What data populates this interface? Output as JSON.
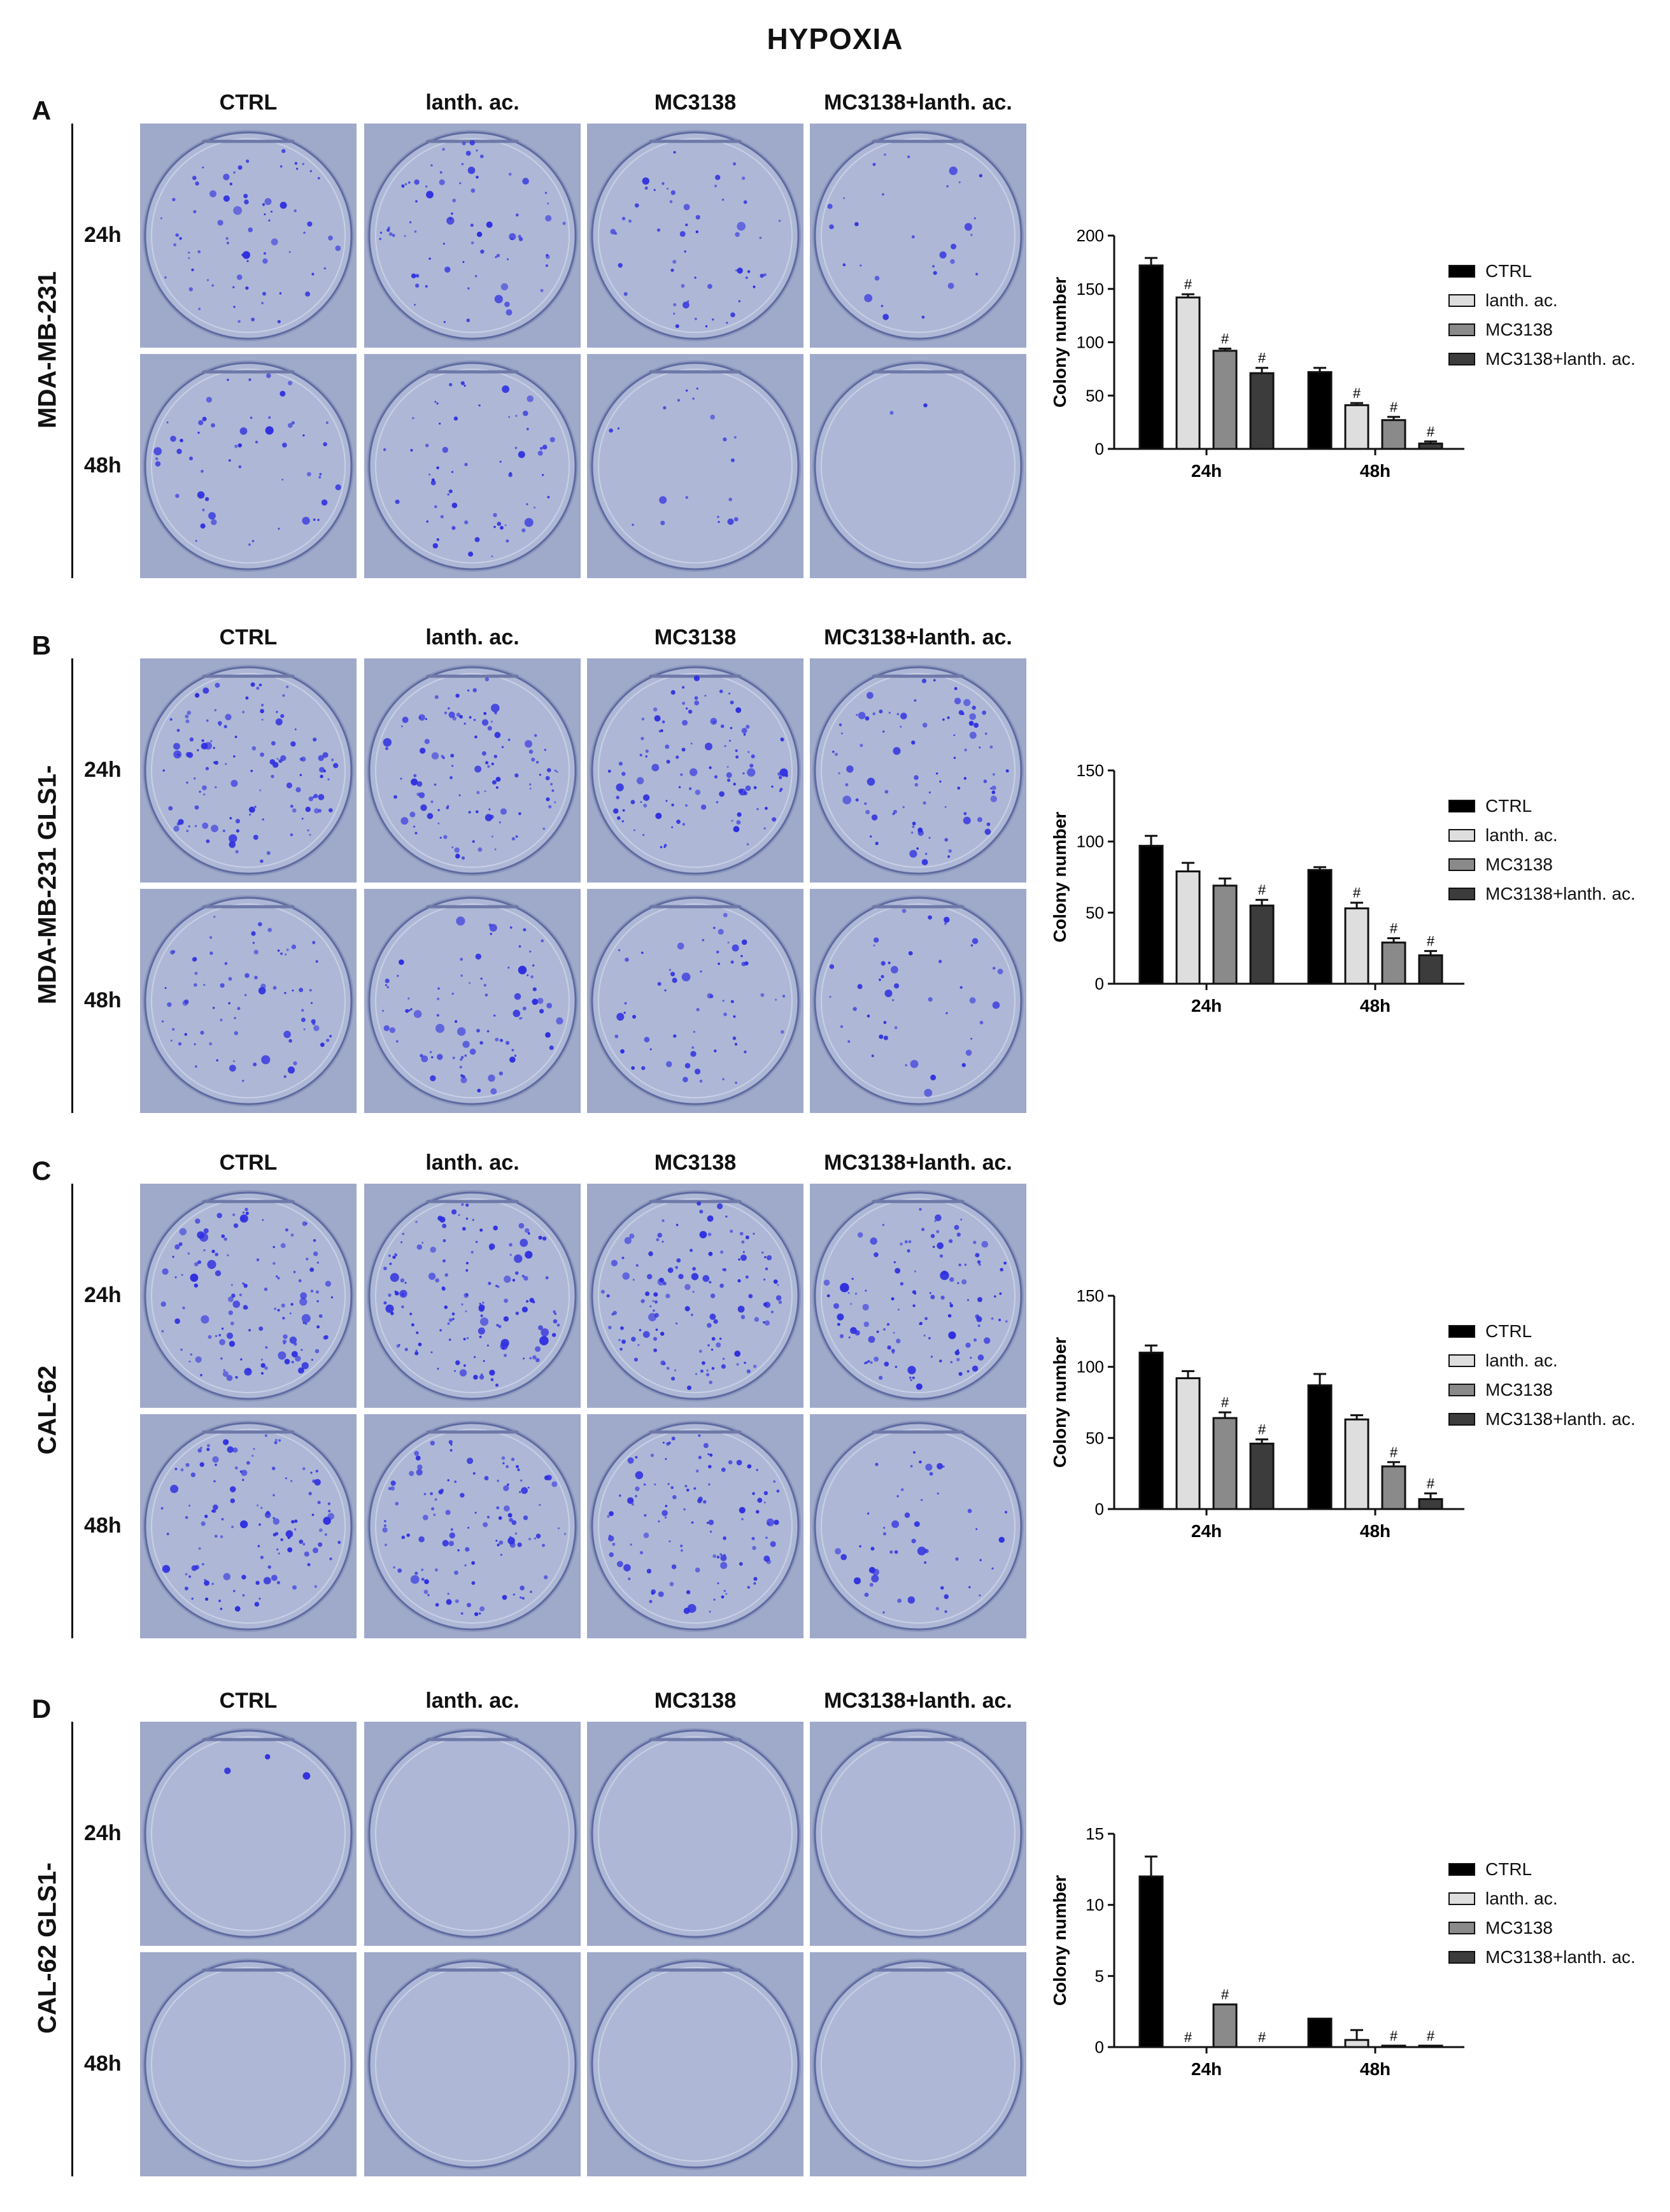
{
  "figure": {
    "title": "HYPOXIA",
    "treatment_headers": [
      "CTRL",
      "lanth. ac.",
      "MC3138",
      "MC3138+lanth. ac."
    ],
    "time_labels": [
      "24h",
      "48h"
    ],
    "panels": [
      {
        "letter": "A",
        "cell_line": "MDA-MB-231",
        "colonies": [
          [
            70,
            75,
            55,
            30
          ],
          [
            55,
            60,
            20,
            2
          ]
        ]
      },
      {
        "letter": "B",
        "cell_line": "MDA-MB-231 GLS1-",
        "colonies": [
          [
            120,
            110,
            110,
            90
          ],
          [
            75,
            85,
            60,
            45
          ]
        ]
      },
      {
        "letter": "C",
        "cell_line": "CAL-62",
        "colonies": [
          [
            130,
            140,
            130,
            120
          ],
          [
            120,
            115,
            110,
            50
          ]
        ]
      },
      {
        "letter": "D",
        "cell_line": "CAL-62 GLS1-",
        "colonies": [
          [
            3,
            0,
            0,
            0
          ],
          [
            0,
            0,
            0,
            0
          ]
        ]
      }
    ]
  },
  "colors": {
    "CTRL": "#000000",
    "lanth. ac.": "#dedede",
    "MC3138": "#8a8a8a",
    "MC3138+lanth. ac.": "#3c3c3c",
    "colony": "#2f2fe0",
    "plate": "#aeb8d6"
  },
  "chart_data": [
    {
      "type": "bar",
      "panel": "A",
      "categories": [
        "24h",
        "48h"
      ],
      "ylabel": "Colony number",
      "ylim": [
        0,
        200
      ],
      "yticks": [
        0,
        50,
        100,
        150,
        200
      ],
      "legend_position": "right",
      "series": [
        {
          "name": "CTRL",
          "values": [
            172,
            72
          ],
          "errors": [
            7,
            4
          ],
          "marks": [
            "",
            ""
          ]
        },
        {
          "name": "lanth. ac.",
          "values": [
            142,
            41
          ],
          "errors": [
            3,
            2
          ],
          "marks": [
            "#",
            "#"
          ]
        },
        {
          "name": "MC3138",
          "values": [
            92,
            27
          ],
          "errors": [
            2,
            3
          ],
          "marks": [
            "#",
            "#"
          ]
        },
        {
          "name": "MC3138+lanth. ac.",
          "values": [
            71,
            5
          ],
          "errors": [
            5,
            2
          ],
          "marks": [
            "#",
            "#"
          ]
        }
      ]
    },
    {
      "type": "bar",
      "panel": "B",
      "categories": [
        "24h",
        "48h"
      ],
      "ylabel": "Colony number",
      "ylim": [
        0,
        150
      ],
      "yticks": [
        0,
        50,
        100,
        150
      ],
      "legend_position": "right",
      "series": [
        {
          "name": "CTRL",
          "values": [
            97,
            80
          ],
          "errors": [
            7,
            2
          ],
          "marks": [
            "",
            ""
          ]
        },
        {
          "name": "lanth. ac.",
          "values": [
            79,
            53
          ],
          "errors": [
            6,
            4
          ],
          "marks": [
            "",
            "#"
          ]
        },
        {
          "name": "MC3138",
          "values": [
            69,
            29
          ],
          "errors": [
            5,
            3
          ],
          "marks": [
            "",
            "#"
          ]
        },
        {
          "name": "MC3138+lanth. ac.",
          "values": [
            55,
            20
          ],
          "errors": [
            4,
            3
          ],
          "marks": [
            "#",
            "#"
          ]
        }
      ]
    },
    {
      "type": "bar",
      "panel": "C",
      "categories": [
        "24h",
        "48h"
      ],
      "ylabel": "Colony number",
      "ylim": [
        0,
        150
      ],
      "yticks": [
        0,
        50,
        100,
        150
      ],
      "legend_position": "right",
      "series": [
        {
          "name": "CTRL",
          "values": [
            110,
            87
          ],
          "errors": [
            5,
            8
          ],
          "marks": [
            "",
            ""
          ]
        },
        {
          "name": "lanth. ac.",
          "values": [
            92,
            63
          ],
          "errors": [
            5,
            3
          ],
          "marks": [
            "",
            ""
          ]
        },
        {
          "name": "MC3138",
          "values": [
            64,
            30
          ],
          "errors": [
            4,
            3
          ],
          "marks": [
            "#",
            "#"
          ]
        },
        {
          "name": "MC3138+lanth. ac.",
          "values": [
            46,
            7
          ],
          "errors": [
            3,
            4
          ],
          "marks": [
            "#",
            "#"
          ]
        }
      ]
    },
    {
      "type": "bar",
      "panel": "D",
      "categories": [
        "24h",
        "48h"
      ],
      "ylabel": "Colony number",
      "ylim": [
        0,
        15
      ],
      "yticks": [
        0,
        5,
        10,
        15
      ],
      "legend_position": "right",
      "series": [
        {
          "name": "CTRL",
          "values": [
            12,
            2
          ],
          "errors": [
            1.4,
            0
          ],
          "marks": [
            "",
            ""
          ]
        },
        {
          "name": "lanth. ac.",
          "values": [
            0,
            0.5
          ],
          "errors": [
            0,
            0.7
          ],
          "marks": [
            "#",
            ""
          ]
        },
        {
          "name": "MC3138",
          "values": [
            3,
            0.1
          ],
          "errors": [
            0,
            0
          ],
          "marks": [
            "#",
            "#"
          ]
        },
        {
          "name": "MC3138+lanth. ac.",
          "values": [
            0,
            0.1
          ],
          "errors": [
            0,
            0
          ],
          "marks": [
            "#",
            "#"
          ]
        }
      ]
    }
  ]
}
